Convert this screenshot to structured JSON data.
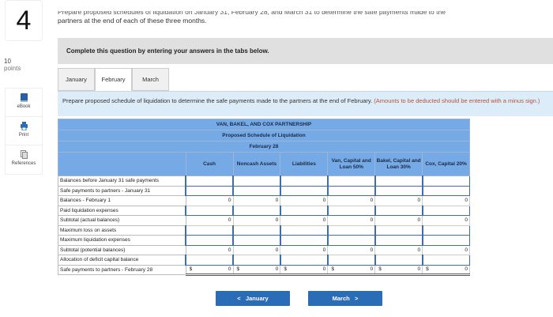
{
  "question": {
    "number": "4",
    "points_value": "10",
    "points_label": "points"
  },
  "tools": [
    {
      "label": "eBook",
      "icon": "book-icon"
    },
    {
      "label": "Print",
      "icon": "printer-icon"
    },
    {
      "label": "References",
      "icon": "documents-icon"
    }
  ],
  "prompt": {
    "line1": "Prepare proposed schedules of liquidation on January 31, February 28, and March 31 to determine the safe payments made to the",
    "line2": "partners at the end of each of these three months."
  },
  "banner": "Complete this question by entering your answers in the tabs below.",
  "tabs": [
    {
      "label": "January"
    },
    {
      "label": "February"
    },
    {
      "label": "March"
    }
  ],
  "instructions": {
    "text": "Prepare proposed schedule of liquidation to determine the safe payments made to the partners at the end of February.",
    "note": "(Amounts to be deducted should be entered with a minus sign.)"
  },
  "schedule": {
    "title": "VAN, BAKEL, AND COX PARTNERSHIP",
    "subtitle": "Proposed Schedule of Liquidation",
    "date": "February 28",
    "columns": [
      "Cash",
      "Noncash Assets",
      "Liabilities",
      "Van, Capital and Loan 50%",
      "Bakel, Capital and Loan 30%",
      "Cox, Capital 20%"
    ],
    "rows": [
      {
        "label": "Balances before January 31 safe payments",
        "type": "input",
        "values": [
          "",
          "",
          "",
          "",
          "",
          ""
        ]
      },
      {
        "label": "Safe payments to partners - January 31",
        "type": "input",
        "values": [
          "",
          "",
          "",
          "",
          "",
          ""
        ]
      },
      {
        "label": "Balances - February 1",
        "type": "calc",
        "values": [
          "0",
          "0",
          "0",
          "0",
          "0",
          "0"
        ]
      },
      {
        "label": "Paid liquidation expenses",
        "type": "input",
        "values": [
          "",
          "",
          "",
          "",
          "",
          ""
        ]
      },
      {
        "label": "Subtotal (actual balances)",
        "type": "calc",
        "values": [
          "0",
          "0",
          "0",
          "0",
          "0",
          "0"
        ]
      },
      {
        "label": "Maximum loss on assets",
        "type": "input",
        "values": [
          "",
          "",
          "",
          "",
          "",
          ""
        ]
      },
      {
        "label": "Maximum liquidation expenses",
        "type": "input",
        "values": [
          "",
          "",
          "",
          "",
          "",
          ""
        ]
      },
      {
        "label": "Subtotal (potential balances)",
        "type": "calc",
        "values": [
          "0",
          "0",
          "0",
          "0",
          "0",
          "0"
        ]
      },
      {
        "label": "Allocation of deficit capital balance",
        "type": "input",
        "values": [
          "",
          "",
          "",
          "",
          "",
          ""
        ]
      },
      {
        "label": "Safe payments to partners - February 28",
        "type": "total",
        "currency": "$",
        "values": [
          "0",
          "0",
          "0",
          "0",
          "0",
          "0"
        ]
      }
    ]
  },
  "nav": {
    "prev_label": "January",
    "next_label": "March"
  },
  "colors": {
    "header_blue": "#76aae6",
    "button_blue": "#2a6cb6",
    "note_red": "#b5523b"
  }
}
